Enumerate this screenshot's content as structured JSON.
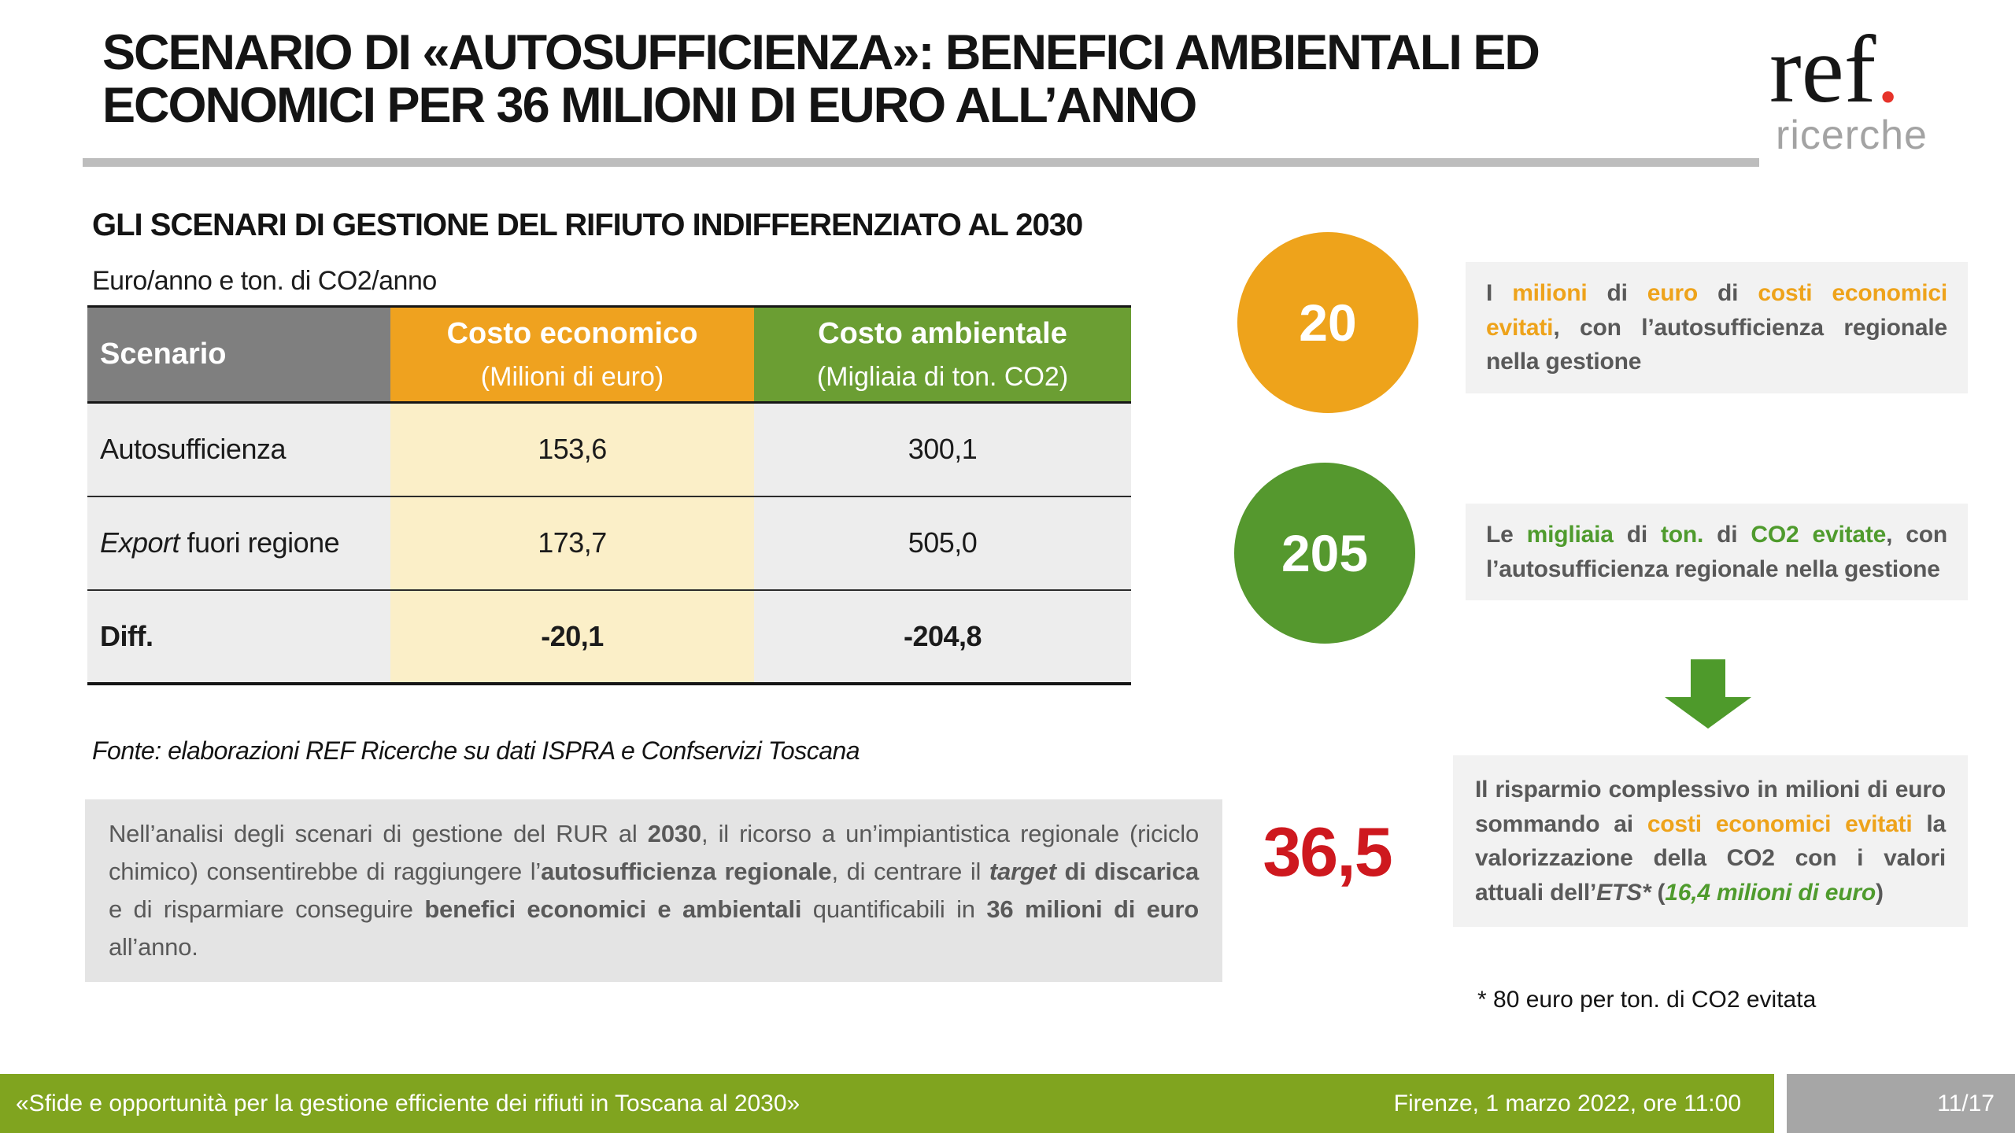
{
  "colors": {
    "accent_orange": "#EEA31B",
    "accent_green": "#4F9B2D",
    "table_header_gray": "#7F7F7F",
    "table_header_orange": "#EFA21F",
    "table_header_green": "#6B9E33",
    "table_cell_gray": "#EDEDED",
    "table_cell_cream": "#FBEFC8",
    "circle_green": "#55982E",
    "arrow_green": "#4E9A2B",
    "red": "#CE181E",
    "logo_dot_red": "#E6332A",
    "footer_green": "#80A41F",
    "footer_gray": "#A6A6A6",
    "paragraph_bg": "#E4E4E4",
    "infobox_bg": "#F2F2F2",
    "body_text_gray": "#595959"
  },
  "header": {
    "title_line1": "SCENARIO DI «AUTOSUFFICIENZA»: BENEFICI AMBIENTALI ED",
    "title_line2": "ECONOMICI PER 36 MILIONI DI EURO ALL’ANNO",
    "logo_text": "ref",
    "logo_dot": ".",
    "logo_subtitle": "ricerche"
  },
  "table_section": {
    "heading": "GLI SCENARI DI GESTIONE DEL RIFIUTO INDIFFERENZIATO AL 2030",
    "unit_note": "Euro/anno e ton. di CO2/anno",
    "source": "Fonte: elaborazioni REF Ricerche su dati ISPRA e Confservizi Toscana"
  },
  "table": {
    "col_scenario": "Scenario",
    "col_economic_title": "Costo economico",
    "col_economic_sub": "(Milioni di euro)",
    "col_environmental_title": "Costo ambientale",
    "col_environmental_sub": "(Migliaia di ton. CO2)",
    "rows": [
      {
        "scenario": [
          {
            "t": "Autosufficienza"
          }
        ],
        "economic": "153,6",
        "environmental": "300,1"
      },
      {
        "scenario": [
          {
            "t": "Export",
            "cls": "i"
          },
          {
            "t": " fuori regione"
          }
        ],
        "economic": "173,7",
        "environmental": "505,0"
      },
      {
        "scenario": [
          {
            "t": "Diff.",
            "cls": "b"
          }
        ],
        "economic": "-20,1",
        "environmental": "-204,8"
      }
    ]
  },
  "analysis": {
    "segments": [
      {
        "t": "Nell’analisi degli scenari di gestione del RUR al "
      },
      {
        "t": "2030",
        "cls": "b"
      },
      {
        "t": ", il ricorso a un’impiantistica regionale (riciclo chimico) consentirebbe di raggiungere l’"
      },
      {
        "t": "autosufficienza regionale",
        "cls": "b"
      },
      {
        "t": ", di centrare il "
      },
      {
        "t": "target",
        "cls": "b i"
      },
      {
        "t": " di discarica",
        "cls": "b"
      },
      {
        "t": " e di risparmiare conseguire "
      },
      {
        "t": "benefici economici e ambientali",
        "cls": "b"
      },
      {
        "t": " quantificabili in "
      },
      {
        "t": "36 milioni di euro",
        "cls": "b"
      },
      {
        "t": " all’anno."
      }
    ]
  },
  "kpis": {
    "economic_value": "20",
    "economic_text": [
      {
        "t": "I "
      },
      {
        "t": "milioni",
        "cls": "o"
      },
      {
        "t": " di "
      },
      {
        "t": "euro",
        "cls": "o"
      },
      {
        "t": " di "
      },
      {
        "t": "costi economici evitati",
        "cls": "o"
      },
      {
        "t": ", con l’autosufficienza regionale nella gestione"
      }
    ],
    "environmental_value": "205",
    "environmental_text": [
      {
        "t": "Le "
      },
      {
        "t": "migliaia",
        "cls": "g"
      },
      {
        "t": " di "
      },
      {
        "t": "ton.",
        "cls": "g"
      },
      {
        "t": " di "
      },
      {
        "t": "CO2 evitate",
        "cls": "g"
      },
      {
        "t": ", con l’autosufficienza regionale nella gestione"
      }
    ],
    "total_value": "36,5",
    "total_text": [
      {
        "t": "Il risparmio complessivo in milioni di euro sommando ai "
      },
      {
        "t": "costi economici evitati",
        "cls": "o"
      },
      {
        "t": " la valorizzazione della CO2 con i valori attuali dell’"
      },
      {
        "t": "ETS*",
        "cls": "i"
      },
      {
        "t": " ("
      },
      {
        "t": "16,4 milioni di euro",
        "cls": "g i"
      },
      {
        "t": ")"
      }
    ],
    "footnote": "* 80 euro per ton. di CO2 evitata"
  },
  "footer": {
    "left": "«Sfide e opportunità per la gestione efficiente dei rifiuti in Toscana al 2030»",
    "date": "Firenze, 1 marzo 2022, ore 11:00",
    "page": "11/17"
  }
}
